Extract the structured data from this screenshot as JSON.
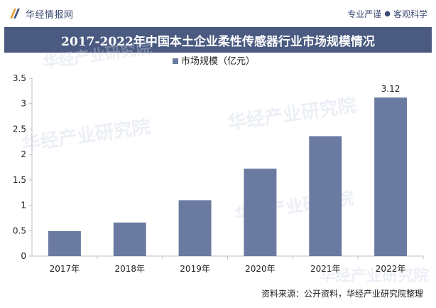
{
  "brand": {
    "name": "华经情报网",
    "icon": "huajing-logo-icon"
  },
  "slogan": {
    "left": "专业严谨",
    "sep": "●",
    "right": "客观科学"
  },
  "colors": {
    "bar": "#6a7aa0",
    "title_bg": "#4a5a80",
    "grid": "#d9d9d9"
  },
  "chart_data": {
    "type": "bar",
    "title": "2017-2022年中国本土企业柔性传感器行业市场规模情况",
    "categories": [
      "2017年",
      "2018年",
      "2019年",
      "2020年",
      "2021年",
      "2022年"
    ],
    "series": [
      {
        "name": "市场规模（亿元）",
        "values": [
          0.49,
          0.66,
          1.1,
          1.72,
          2.36,
          3.12
        ]
      }
    ],
    "data_labels": [
      "",
      "",
      "",
      "",
      "",
      "3.12"
    ],
    "ylim": [
      0,
      3.5
    ],
    "yticks": [
      "0",
      "0.5",
      "1",
      "1.5",
      "2",
      "2.5",
      "3",
      "3.5"
    ],
    "legend_position": "top",
    "grid": false
  },
  "source": "资料来源：公开资料，华经产业研究院整理",
  "watermarks": [
    "华经产业研究院",
    "华经产业研究院",
    "华经产业研究院",
    "华经产业研究院",
    "华经产业研究院"
  ]
}
